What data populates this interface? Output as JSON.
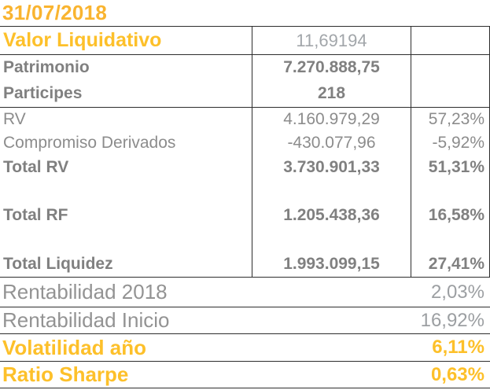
{
  "title": "31/07/2018",
  "colors": {
    "title_yellow": "#F9B430",
    "accent_yellow": "#FDC02A",
    "gray_bold": "#808080",
    "gray_regular": "#8C8C8C",
    "gray_regular2": "#939393",
    "gray_light": "#A2A6AA",
    "gray_light2": "#9C9FA2",
    "line": "#2D2D2D"
  },
  "table": {
    "rows": [
      {
        "label": "Valor Liquidativo",
        "value": "11,69194",
        "pct": ""
      },
      {
        "label": "Patrimonio",
        "value": "7.270.888,75",
        "pct": ""
      },
      {
        "label": "Participes",
        "value": "218",
        "pct": ""
      },
      {
        "label": "RV",
        "value": "4.160.979,29",
        "pct": "57,23%"
      },
      {
        "label": "Compromiso Derivados",
        "value": "-430.077,96",
        "pct": "-5,92%"
      },
      {
        "label": "Total RV",
        "value": "3.730.901,33",
        "pct": "51,31%"
      },
      {
        "label": "Total RF",
        "value": "1.205.438,36",
        "pct": "16,58%"
      },
      {
        "label": "Total Liquidez",
        "value": "1.993.099,15",
        "pct": "27,41%"
      }
    ]
  },
  "summary": {
    "rows": [
      {
        "label": "Rentabilidad 2018",
        "value": "2,03%"
      },
      {
        "label": "Rentabilidad Inicio",
        "value": "16,92%"
      },
      {
        "label": "Volatilidad año",
        "value": "6,11%"
      },
      {
        "label": "Ratio Sharpe",
        "value": "0,63%"
      }
    ]
  }
}
